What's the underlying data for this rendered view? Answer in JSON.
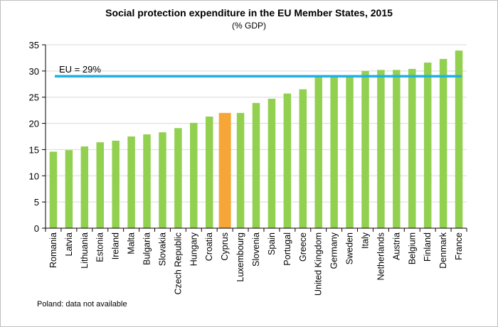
{
  "chart_data": {
    "type": "bar",
    "title": "Social protection expenditure in the EU Member States, 2015",
    "subtitle": "(% GDP)",
    "note": "Poland: data not available",
    "categories": [
      "Romania",
      "Latvia",
      "Lithuania",
      "Estonia",
      "Ireland",
      "Malta",
      "Bulgaria",
      "Slovakia",
      "Czech Republic",
      "Hungary",
      "Croatia",
      "Cyprus",
      "Luxembourg",
      "Slovenia",
      "Spain",
      "Portugal",
      "Greece",
      "United Kingdom",
      "Germany",
      "Sweden",
      "Italy",
      "Netherlands",
      "Austria",
      "Belgium",
      "Finland",
      "Denmark",
      "France"
    ],
    "values": [
      14.6,
      14.9,
      15.6,
      16.4,
      16.7,
      17.5,
      17.9,
      18.3,
      19.1,
      20.1,
      21.3,
      22.0,
      22.0,
      23.9,
      24.7,
      25.7,
      26.5,
      29.0,
      29.0,
      29.2,
      30.0,
      30.2,
      30.2,
      30.4,
      31.6,
      32.3,
      33.9
    ],
    "ylim": [
      0,
      35
    ],
    "yticks": [
      0,
      5,
      10,
      15,
      20,
      25,
      30,
      35
    ],
    "grid": true,
    "reference_line": {
      "label": "EU = 29%",
      "value": 29
    },
    "highlight_category": "Cyprus",
    "colors": {
      "bar": "#92d050",
      "highlight": "#f5a636",
      "reference_line": "#1fb0e6",
      "grid": "#d9d9d9",
      "axis": "#000000"
    }
  }
}
